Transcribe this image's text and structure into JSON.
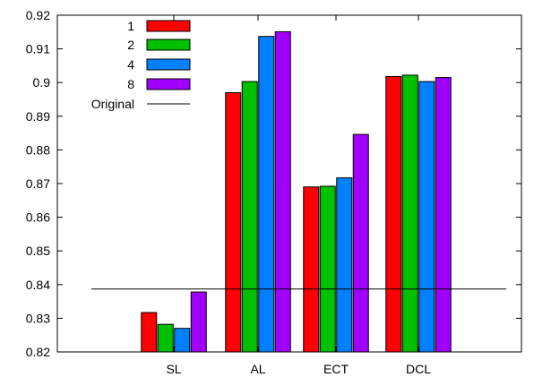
{
  "chart_data": {
    "type": "bar",
    "title": "",
    "xlabel": "",
    "ylabel": "",
    "categories": [
      "SL",
      "AL",
      "ECT",
      "DCL"
    ],
    "series": [
      {
        "name": "1",
        "color": "#ff0000",
        "values": [
          0.8317,
          0.897,
          0.869,
          0.9018
        ]
      },
      {
        "name": "2",
        "color": "#00c000",
        "values": [
          0.8282,
          0.9003,
          0.8692,
          0.9022
        ]
      },
      {
        "name": "4",
        "color": "#0080ff",
        "values": [
          0.827,
          0.9137,
          0.8717,
          0.9003
        ]
      },
      {
        "name": "8",
        "color": "#a000ff",
        "values": [
          0.8378,
          0.9151,
          0.8846,
          0.9015
        ]
      }
    ],
    "reference_line": {
      "name": "Original",
      "value": 0.8387
    },
    "ylim": [
      0.82,
      0.92
    ],
    "yticks": [
      "0.82",
      "0.83",
      "0.84",
      "0.85",
      "0.86",
      "0.87",
      "0.88",
      "0.89",
      "0.9",
      "0.91",
      "0.92"
    ],
    "grid": false,
    "legend_position": "top-left"
  }
}
